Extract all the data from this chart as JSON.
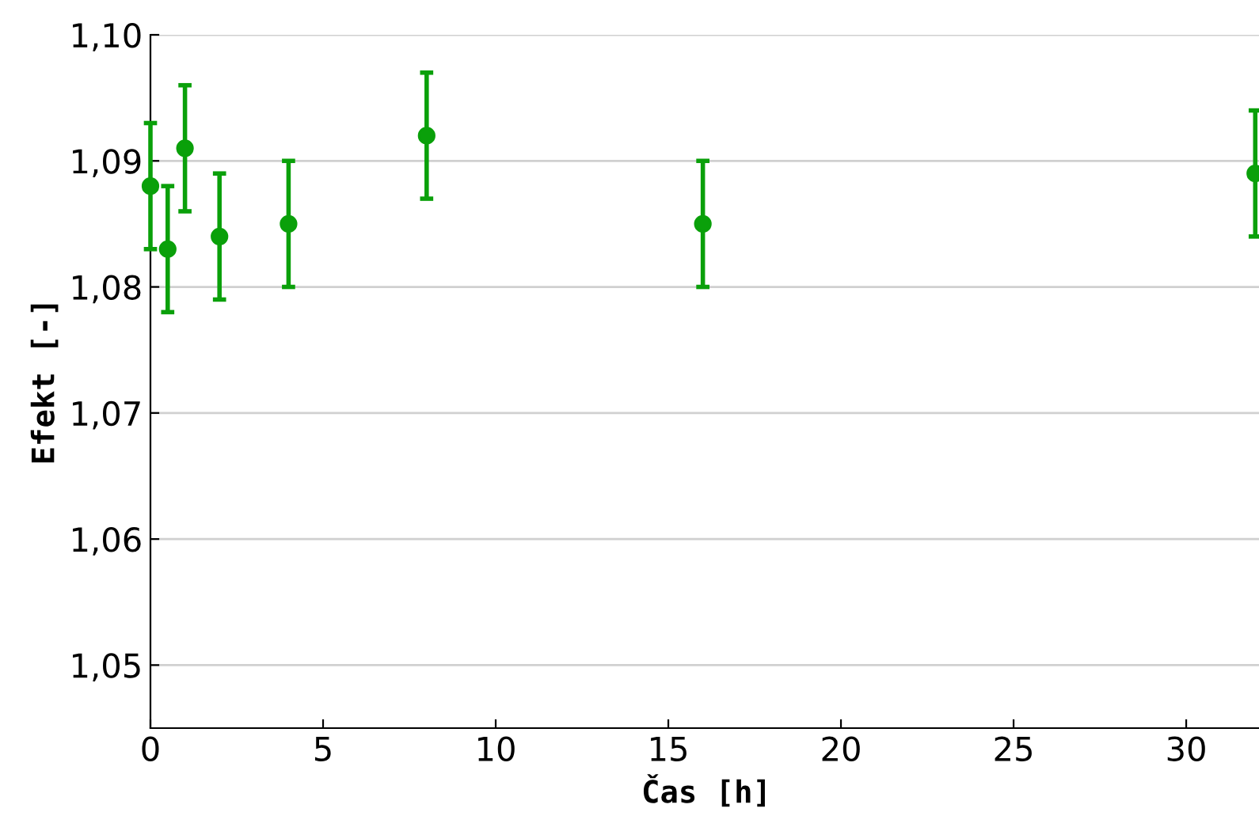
{
  "chart_data": {
    "type": "scatter",
    "xlabel": "Čas [h]",
    "ylabel": "Efekt [-]",
    "x": [
      0,
      0.5,
      1,
      2,
      4,
      8,
      16,
      32
    ],
    "series": [
      {
        "color": "#0aa00a",
        "values": [
          1.088,
          1.083,
          1.091,
          1.084,
          1.085,
          1.092,
          1.085,
          1.089
        ],
        "errors": [
          0.005,
          0.005,
          0.005,
          0.005,
          0.005,
          0.005,
          0.005,
          0.005
        ]
      }
    ],
    "xlim": [
      0,
      32.2
    ],
    "xticks": [
      0,
      5,
      10,
      15,
      20,
      25,
      30
    ],
    "ylim": [
      1.045,
      1.1
    ],
    "yticks": [
      {
        "value": 1.05,
        "label": "1,05"
      },
      {
        "value": 1.06,
        "label": "1,06"
      },
      {
        "value": 1.07,
        "label": "1,07"
      },
      {
        "value": 1.08,
        "label": "1,08"
      },
      {
        "value": 1.09,
        "label": "1,09"
      },
      {
        "value": 1.1,
        "label": "1,10"
      }
    ],
    "grid": "y",
    "marker": "circle"
  }
}
